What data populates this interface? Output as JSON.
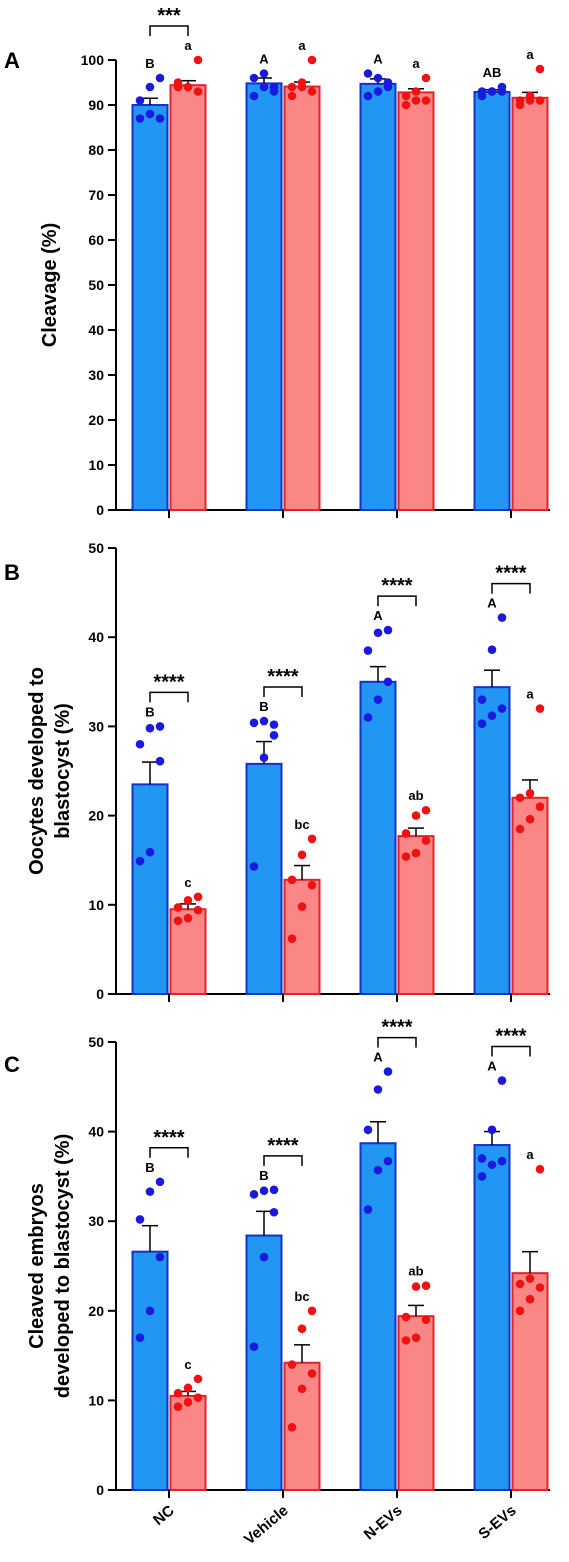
{
  "colors": {
    "blue_bar": "#2196f3",
    "blue_edge": "#1531c7",
    "blue_dot": "#1a1adf",
    "red_bar": "#fa8785",
    "red_edge": "#e0242b",
    "red_dot": "#ee1212"
  },
  "chart_data": [
    {
      "panel": "A",
      "type": "bar",
      "ylabel": "Cleavage (%)",
      "ylim": [
        0,
        100
      ],
      "yticks": [
        "0",
        "10",
        "20",
        "30",
        "40",
        "50",
        "60",
        "70",
        "80",
        "90",
        "100"
      ],
      "categories": [
        "NC",
        "Vehicle",
        "N-EVs",
        "S-EVs"
      ],
      "series": [
        {
          "values": [
            90.0,
            94.8,
            94.7,
            92.9
          ],
          "sem": [
            1.5,
            1.2,
            1.1,
            0.5
          ],
          "points": [
            [
              87,
              88,
              87,
              91,
              94,
              96
            ],
            [
              92,
              94,
              94,
              96,
              97,
              93
            ],
            [
              92,
              93,
              95,
              97,
              96,
              94
            ],
            [
              92,
              93,
              93,
              93,
              93,
              94
            ]
          ],
          "groups": [
            "B",
            "A",
            "A",
            "AB"
          ]
        },
        {
          "values": [
            94.4,
            94.1,
            92.8,
            91.6
          ],
          "sem": [
            1.0,
            1.0,
            0.8,
            1.2
          ],
          "points": [
            [
              94,
              94,
              93,
              95,
              94,
              100
            ],
            [
              92,
              94,
              93,
              94,
              95,
              100
            ],
            [
              90,
              91,
              91,
              92,
              93,
              96
            ],
            [
              90,
              91,
              91,
              91,
              92,
              98
            ]
          ],
          "groups": [
            "a",
            "a",
            "a",
            "a"
          ]
        }
      ],
      "significance": [
        {
          "category": "NC",
          "label": "***"
        }
      ]
    },
    {
      "panel": "B",
      "type": "bar",
      "ylabel": "Oocytes developed to blastocyst (%)",
      "ylabel_lines": [
        "Oocytes developed to",
        "blastocyst (%)"
      ],
      "ylim": [
        0,
        50
      ],
      "yticks": [
        "0",
        "10",
        "20",
        "30",
        "40",
        "50"
      ],
      "categories": [
        "NC",
        "Vehicle",
        "N-EVs",
        "S-EVs"
      ],
      "series": [
        {
          "values": [
            23.5,
            25.8,
            35.0,
            34.4
          ],
          "sem": [
            2.5,
            2.5,
            1.7,
            1.9
          ],
          "points": [
            [
              14.9,
              15.9,
              26.1,
              28.0,
              29.8,
              30.0
            ],
            [
              14.3,
              26.5,
              29.0,
              30.4,
              30.6,
              30.2
            ],
            [
              31.0,
              33.0,
              35.0,
              38.5,
              40.5,
              40.8
            ],
            [
              30.3,
              31.2,
              32.0,
              33.0,
              38.6,
              42.2
            ]
          ],
          "groups": [
            "B",
            "B",
            "A",
            "A"
          ]
        },
        {
          "values": [
            9.5,
            12.8,
            17.7,
            22.0
          ],
          "sem": [
            0.6,
            1.6,
            0.9,
            2.0
          ],
          "points": [
            [
              8.2,
              8.5,
              9.4,
              9.7,
              10.5,
              10.9
            ],
            [
              6.2,
              9.8,
              12.2,
              12.8,
              15.6,
              17.4
            ],
            [
              15.4,
              15.8,
              17.2,
              18.0,
              20.0,
              20.6
            ],
            [
              18.5,
              19.6,
              21.0,
              22.0,
              22.5,
              32.0
            ]
          ],
          "groups": [
            "c",
            "bc",
            "ab",
            "a"
          ]
        }
      ],
      "significance": [
        {
          "category": "NC",
          "label": "****"
        },
        {
          "category": "Vehicle",
          "label": "****"
        },
        {
          "category": "N-EVs",
          "label": "****"
        },
        {
          "category": "S-EVs",
          "label": "****"
        }
      ]
    },
    {
      "panel": "C",
      "type": "bar",
      "ylabel": "Cleaved embryos developed to blastocyst (%)",
      "ylabel_lines": [
        "Cleaved embryos",
        "developed to blastocyst (%)"
      ],
      "ylim": [
        0,
        50
      ],
      "yticks": [
        "0",
        "10",
        "20",
        "30",
        "40",
        "50"
      ],
      "categories": [
        "NC",
        "Vehicle",
        "N-EVs",
        "S-EVs"
      ],
      "series": [
        {
          "values": [
            26.6,
            28.4,
            38.7,
            38.5
          ],
          "sem": [
            2.9,
            2.7,
            2.4,
            1.5
          ],
          "points": [
            [
              17.0,
              20.0,
              26.0,
              30.2,
              33.3,
              34.4
            ],
            [
              16.0,
              26.0,
              31.0,
              33.0,
              33.4,
              33.5
            ],
            [
              31.3,
              35.7,
              36.7,
              40.2,
              44.7,
              46.7
            ],
            [
              35.0,
              36.3,
              36.7,
              37.0,
              40.2,
              45.7
            ]
          ],
          "groups": [
            "B",
            "B",
            "A",
            "A"
          ]
        },
        {
          "values": [
            10.5,
            14.2,
            19.4,
            24.2
          ],
          "sem": [
            0.5,
            2.0,
            1.2,
            2.4
          ],
          "points": [
            [
              9.3,
              9.8,
              10.3,
              10.8,
              11.4,
              12.4
            ],
            [
              7.0,
              11.3,
              13.0,
              14.0,
              18.0,
              20.0
            ],
            [
              16.7,
              17.0,
              19.0,
              19.3,
              22.7,
              22.8
            ],
            [
              20.0,
              21.3,
              22.6,
              23.0,
              23.6,
              35.8
            ]
          ],
          "groups": [
            "c",
            "bc",
            "ab",
            "a"
          ]
        }
      ],
      "significance": [
        {
          "category": "NC",
          "label": "****"
        },
        {
          "category": "Vehicle",
          "label": "****"
        },
        {
          "category": "N-EVs",
          "label": "****"
        },
        {
          "category": "S-EVs",
          "label": "****"
        }
      ]
    }
  ]
}
